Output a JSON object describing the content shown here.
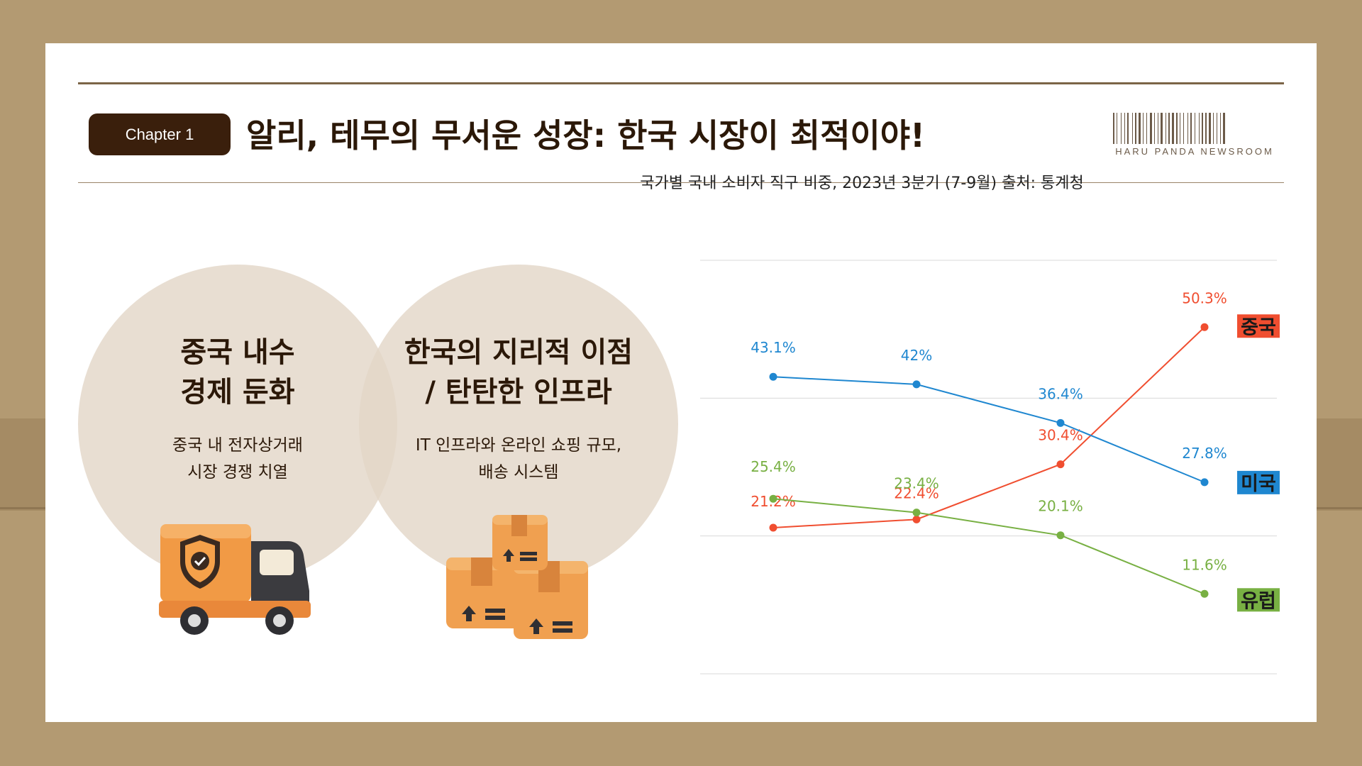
{
  "header": {
    "chapter_label": "Chapter 1",
    "title": "알리, 테무의 무서운 성장: 한국 시장이 최적이야!",
    "brand": "HARU PANDA NEWSROOM"
  },
  "circles": [
    {
      "title_line1": "중국 내수",
      "title_line2": "경제 둔화",
      "body_line1": "중국 내 전자상거래",
      "body_line2": "시장 경쟁 치열",
      "icon": "delivery-truck-icon"
    },
    {
      "title_line1": "한국의 지리적 이점",
      "title_line2": "/ 탄탄한 인프라",
      "body_line1": "IT 인프라와 온라인 쇼핑 규모,",
      "body_line2": "배송 시스템",
      "icon": "cardboard-boxes-icon"
    }
  ],
  "chart_data": {
    "type": "line",
    "title": "국가별 국내 소비자 직구 비중, 2023년 3분기 (7-9월) 출처: 통계청",
    "x": [
      1,
      2,
      3,
      4
    ],
    "ylim": [
      0,
      60
    ],
    "grid": true,
    "legend": "right-end-labels",
    "series": [
      {
        "name": "중국",
        "values": [
          21.2,
          22.4,
          30.4,
          50.3
        ],
        "labels": [
          "21.2%",
          "22.4%",
          "30.4%",
          "50.3%"
        ],
        "color": "#f04e30"
      },
      {
        "name": "미국",
        "values": [
          43.1,
          42,
          36.4,
          27.8
        ],
        "labels": [
          "43.1%",
          "42%",
          "36.4%",
          "27.8%"
        ],
        "color": "#1f87d0"
      },
      {
        "name": "유럽",
        "values": [
          25.4,
          23.4,
          20.1,
          11.6
        ],
        "labels": [
          "25.4%",
          "23.4%",
          "20.1%",
          "11.6%"
        ],
        "color": "#78b043"
      }
    ]
  }
}
